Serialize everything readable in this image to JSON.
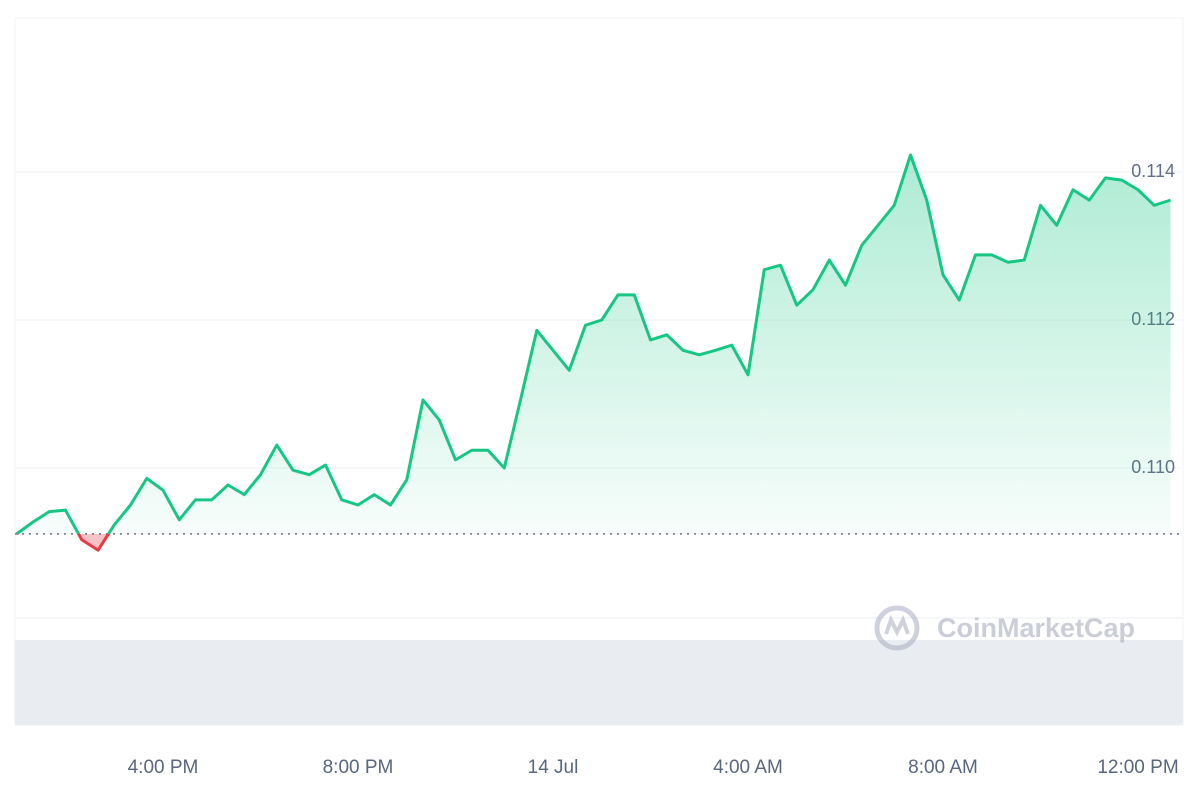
{
  "chart_data": {
    "type": "line",
    "categories": [
      null,
      null,
      null,
      null,
      null,
      null,
      null,
      null,
      null,
      "4:00 PM",
      null,
      null,
      null,
      null,
      null,
      null,
      null,
      null,
      null,
      null,
      null,
      "8:00 PM",
      null,
      null,
      null,
      null,
      null,
      null,
      null,
      null,
      null,
      null,
      null,
      "14 Jul",
      null,
      null,
      null,
      null,
      null,
      null,
      null,
      null,
      null,
      null,
      null,
      "4:00 AM",
      null,
      null,
      null,
      null,
      null,
      null,
      null,
      null,
      null,
      null,
      null,
      "8:00 AM",
      null,
      null,
      null,
      null,
      null,
      null,
      null,
      null,
      null,
      null,
      null,
      "12:00 PM",
      null,
      null
    ],
    "series": [
      {
        "color": "#16c784",
        "below_color": "#ea3943",
        "values": [
          0.10911,
          0.10927,
          0.10941,
          0.10943,
          0.10903,
          0.10889,
          0.10923,
          0.1095,
          0.10986,
          0.1097,
          0.1093,
          0.10957,
          0.10957,
          0.10977,
          0.10964,
          0.10991,
          0.11031,
          0.10997,
          0.10991,
          0.11004,
          0.10957,
          0.1095,
          0.10964,
          0.1095,
          0.10984,
          0.11092,
          0.11065,
          0.11011,
          0.11024,
          0.11024,
          0.11,
          0.11092,
          0.11186,
          0.11159,
          0.11132,
          0.11193,
          0.112,
          0.11234,
          0.11234,
          0.11173,
          0.1118,
          0.11159,
          0.11153,
          0.11159,
          0.11166,
          0.11126,
          0.11268,
          0.11274,
          0.1122,
          0.11241,
          0.11281,
          0.11247,
          0.11301,
          0.11328,
          0.11355,
          0.11423,
          0.11362,
          0.11261,
          0.11227,
          0.11288,
          0.11288,
          0.11278,
          0.11281,
          0.11355,
          0.11328,
          0.11376,
          0.11362,
          0.11392,
          0.11389,
          0.11376,
          0.11355,
          0.11362
        ]
      }
    ],
    "baseline": 0.10911,
    "ylim": [
      0.108,
      0.116
    ],
    "yticks": [
      {
        "value": 0.11,
        "label": "0.110"
      },
      0.112,
      0.114
    ],
    "grid": true,
    "watermark": "CoinMarketCap"
  }
}
